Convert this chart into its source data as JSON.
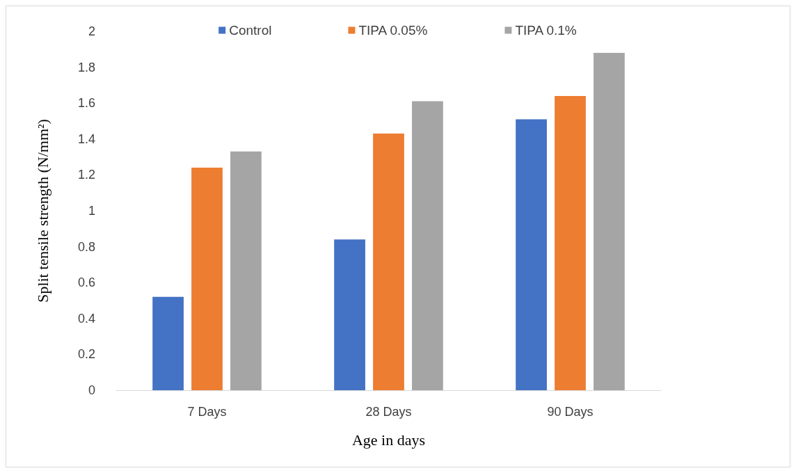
{
  "chart_data": {
    "type": "bar",
    "xlabel": "Age in days",
    "ylabel": "Split tensile strength (N/mm²)",
    "categories": [
      "7 Days",
      "28 Days",
      "90 Days"
    ],
    "series": [
      {
        "name": "Control",
        "color": "#4472c4",
        "values": [
          0.52,
          0.84,
          1.51
        ]
      },
      {
        "name": "TIPA 0.05%",
        "color": "#ed7d31",
        "values": [
          1.24,
          1.43,
          1.64
        ]
      },
      {
        "name": "TIPA 0.1%",
        "color": "#a5a5a5",
        "values": [
          1.33,
          1.61,
          1.88
        ]
      }
    ],
    "ylim": [
      0,
      2
    ],
    "yticks": [
      0,
      0.2,
      0.4,
      0.6,
      0.8,
      1,
      1.2,
      1.4,
      1.6,
      1.8,
      2
    ],
    "grid": false,
    "legend": "top"
  }
}
